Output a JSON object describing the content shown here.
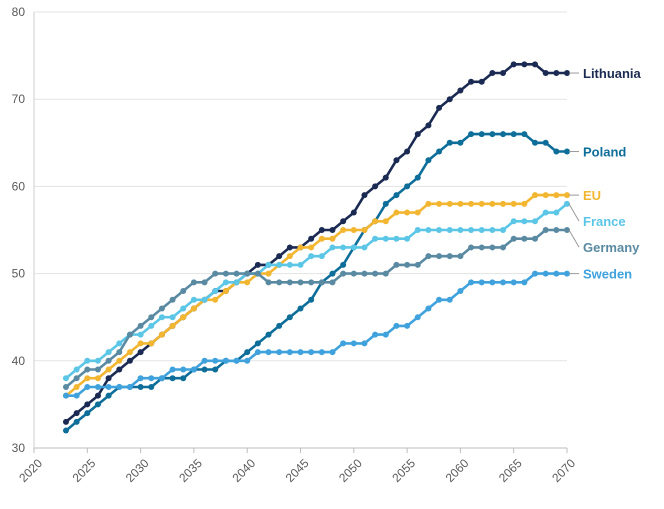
{
  "chart_data": {
    "type": "line",
    "title": "",
    "xlabel": "",
    "ylabel": "",
    "xlim": [
      2020,
      2070
    ],
    "ylim": [
      30,
      80
    ],
    "x_ticks": [
      2020,
      2025,
      2030,
      2035,
      2040,
      2045,
      2050,
      2055,
      2060,
      2065,
      2070
    ],
    "y_ticks": [
      30,
      40,
      50,
      60,
      70,
      80
    ],
    "grid": "horizontal",
    "legend": "direct labels at line ends (right)",
    "x": [
      2023,
      2024,
      2025,
      2026,
      2027,
      2028,
      2029,
      2030,
      2031,
      2032,
      2033,
      2034,
      2035,
      2036,
      2037,
      2038,
      2039,
      2040,
      2041,
      2042,
      2043,
      2044,
      2045,
      2046,
      2047,
      2048,
      2049,
      2050,
      2051,
      2052,
      2053,
      2054,
      2055,
      2056,
      2057,
      2058,
      2059,
      2060,
      2061,
      2062,
      2063,
      2064,
      2065,
      2066,
      2067,
      2068,
      2069,
      2070
    ],
    "series": [
      {
        "name": "Lithuania",
        "color": "#1b2a52",
        "values": [
          33,
          34,
          35,
          36,
          38,
          39,
          40,
          41,
          42,
          43,
          44,
          45,
          46,
          47,
          48,
          48,
          49,
          50,
          51,
          51,
          52,
          53,
          53,
          54,
          55,
          55,
          56,
          57,
          59,
          60,
          61,
          63,
          64,
          66,
          67,
          69,
          70,
          71,
          72,
          72,
          73,
          73,
          74,
          74,
          74,
          73,
          73,
          73
        ]
      },
      {
        "name": "Poland",
        "color": "#0e6e9a",
        "values": [
          32,
          33,
          34,
          35,
          36,
          37,
          37,
          37,
          37,
          38,
          38,
          38,
          39,
          39,
          39,
          40,
          40,
          41,
          42,
          43,
          44,
          45,
          46,
          47,
          49,
          50,
          51,
          53,
          55,
          56,
          58,
          59,
          60,
          61,
          63,
          64,
          65,
          65,
          66,
          66,
          66,
          66,
          66,
          66,
          65,
          65,
          64,
          64
        ]
      },
      {
        "name": "EU",
        "color": "#f2b631",
        "values": [
          36,
          37,
          38,
          38,
          39,
          40,
          41,
          42,
          42,
          43,
          44,
          45,
          46,
          47,
          47,
          48,
          49,
          49,
          50,
          50,
          51,
          52,
          53,
          53,
          54,
          54,
          55,
          55,
          55,
          56,
          56,
          57,
          57,
          57,
          58,
          58,
          58,
          58,
          58,
          58,
          58,
          58,
          58,
          58,
          59,
          59,
          59,
          59
        ]
      },
      {
        "name": "France",
        "color": "#5bc6e6",
        "values": [
          38,
          39,
          40,
          40,
          41,
          42,
          43,
          43,
          44,
          45,
          45,
          46,
          47,
          47,
          48,
          49,
          49,
          50,
          50,
          51,
          51,
          51,
          51,
          52,
          52,
          53,
          53,
          53,
          53,
          54,
          54,
          54,
          54,
          55,
          55,
          55,
          55,
          55,
          55,
          55,
          55,
          55,
          56,
          56,
          56,
          57,
          57,
          58
        ]
      },
      {
        "name": "Germany",
        "color": "#5a8aa2",
        "values": [
          37,
          38,
          39,
          39,
          40,
          41,
          43,
          44,
          45,
          46,
          47,
          48,
          49,
          49,
          50,
          50,
          50,
          50,
          50,
          49,
          49,
          49,
          49,
          49,
          49,
          49,
          50,
          50,
          50,
          50,
          50,
          51,
          51,
          51,
          52,
          52,
          52,
          52,
          53,
          53,
          53,
          53,
          54,
          54,
          54,
          55,
          55,
          55
        ]
      },
      {
        "name": "Sweden",
        "color": "#3fa2dc",
        "values": [
          36,
          36,
          37,
          37,
          37,
          37,
          37,
          38,
          38,
          38,
          39,
          39,
          39,
          40,
          40,
          40,
          40,
          40,
          41,
          41,
          41,
          41,
          41,
          41,
          41,
          41,
          42,
          42,
          42,
          43,
          43,
          44,
          44,
          45,
          46,
          47,
          47,
          48,
          49,
          49,
          49,
          49,
          49,
          49,
          50,
          50,
          50,
          50
        ]
      }
    ]
  }
}
